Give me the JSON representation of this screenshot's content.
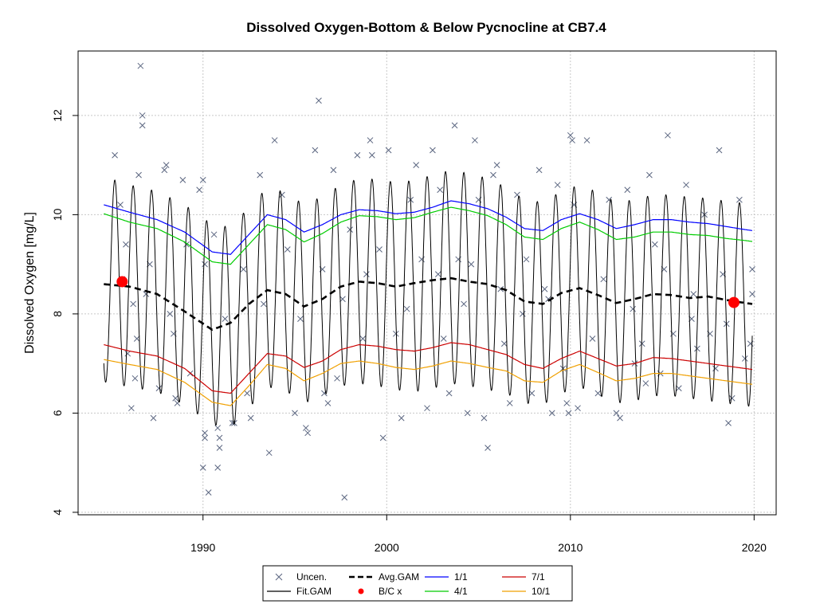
{
  "chart_data": {
    "type": "scatter",
    "title": "Dissolved Oxygen-Bottom & Below Pycnocline at CB7.4",
    "ylabel": "Dissolved Oxygen [mg/L]",
    "xlabel": "",
    "xlim": [
      1983.2,
      2021.2
    ],
    "ylim": [
      3.95,
      13.3
    ],
    "x_ticks": [
      1990,
      2000,
      2010,
      2020
    ],
    "x_tick_labels": [
      "1990",
      "2000",
      "2010",
      "2020"
    ],
    "y_ticks": [
      4,
      6,
      8,
      10,
      12
    ],
    "y_tick_labels": [
      "4",
      "6",
      "8",
      "10",
      "12"
    ],
    "grid": true,
    "legend_position": "bottom",
    "fit_x_range": [
      1984.6,
      2019.9
    ],
    "series": [
      {
        "name": "Uncen.",
        "kind": "points",
        "marker": "x",
        "color": "#5b6680",
        "points": [
          [
            1985.2,
            11.2
          ],
          [
            1985.5,
            10.2
          ],
          [
            1985.8,
            9.4
          ],
          [
            1985.9,
            7.2
          ],
          [
            1986.1,
            6.1
          ],
          [
            1986.3,
            6.7
          ],
          [
            1986.4,
            7.5
          ],
          [
            1986.5,
            10.8
          ],
          [
            1986.6,
            13.0
          ],
          [
            1986.7,
            12.0
          ],
          [
            1986.7,
            11.8
          ],
          [
            1986.9,
            8.4
          ],
          [
            1987.3,
            5.9
          ],
          [
            1987.6,
            6.5
          ],
          [
            1987.9,
            10.9
          ],
          [
            1988.0,
            11.0
          ],
          [
            1988.2,
            8.0
          ],
          [
            1988.5,
            6.3
          ],
          [
            1988.6,
            6.2
          ],
          [
            1988.9,
            10.7
          ],
          [
            1989.3,
            6.8
          ],
          [
            1989.8,
            10.5
          ],
          [
            1990.1,
            5.6
          ],
          [
            1990.1,
            5.5
          ],
          [
            1990.0,
            4.9
          ],
          [
            1990.3,
            4.4
          ],
          [
            1990.1,
            9.0
          ],
          [
            1990.0,
            10.7
          ],
          [
            1990.6,
            9.6
          ],
          [
            1990.8,
            4.9
          ],
          [
            1990.9,
            5.3
          ],
          [
            1990.9,
            5.5
          ],
          [
            1990.8,
            5.7
          ],
          [
            1991.2,
            7.9
          ],
          [
            1991.6,
            5.8
          ],
          [
            1991.7,
            5.8
          ],
          [
            1992.4,
            6.4
          ],
          [
            1992.6,
            5.9
          ],
          [
            1993.1,
            10.8
          ],
          [
            1993.3,
            8.2
          ],
          [
            1993.6,
            5.2
          ],
          [
            1993.9,
            11.5
          ],
          [
            1994.3,
            10.4
          ],
          [
            1995.0,
            6.0
          ],
          [
            1995.6,
            5.7
          ],
          [
            1995.7,
            5.6
          ],
          [
            1996.1,
            11.3
          ],
          [
            1996.3,
            12.3
          ],
          [
            1996.5,
            8.9
          ],
          [
            1996.6,
            6.4
          ],
          [
            1996.8,
            6.2
          ],
          [
            1997.1,
            10.9
          ],
          [
            1997.3,
            6.7
          ],
          [
            1997.7,
            4.3
          ],
          [
            1998.0,
            9.7
          ],
          [
            1998.4,
            11.2
          ],
          [
            1998.7,
            7.5
          ],
          [
            1999.1,
            11.5
          ],
          [
            1999.2,
            11.2
          ],
          [
            1999.6,
            9.3
          ],
          [
            1999.8,
            5.5
          ],
          [
            2000.1,
            11.3
          ],
          [
            2000.5,
            7.6
          ],
          [
            2000.8,
            5.9
          ],
          [
            2001.3,
            10.3
          ],
          [
            2001.6,
            11.0
          ],
          [
            2001.9,
            9.1
          ],
          [
            2002.2,
            6.1
          ],
          [
            2002.5,
            11.3
          ],
          [
            2002.9,
            10.5
          ],
          [
            2003.1,
            7.5
          ],
          [
            2003.4,
            6.4
          ],
          [
            2003.7,
            11.8
          ],
          [
            2003.9,
            9.1
          ],
          [
            2004.2,
            8.2
          ],
          [
            2004.4,
            6.0
          ],
          [
            2004.8,
            11.5
          ],
          [
            2005.0,
            10.3
          ],
          [
            2005.3,
            5.9
          ],
          [
            2005.5,
            5.3
          ],
          [
            2005.8,
            10.8
          ],
          [
            2006.0,
            11.0
          ],
          [
            2006.4,
            7.4
          ],
          [
            2006.7,
            6.2
          ],
          [
            2007.1,
            10.4
          ],
          [
            2007.4,
            8.0
          ],
          [
            2007.9,
            6.4
          ],
          [
            2008.3,
            10.9
          ],
          [
            2008.6,
            8.5
          ],
          [
            2009.0,
            6.0
          ],
          [
            2009.3,
            10.6
          ],
          [
            2009.6,
            6.9
          ],
          [
            2009.8,
            6.2
          ],
          [
            2009.9,
            6.0
          ],
          [
            2010.0,
            11.6
          ],
          [
            2010.1,
            11.5
          ],
          [
            2010.2,
            10.2
          ],
          [
            2010.4,
            6.1
          ],
          [
            2010.9,
            11.5
          ],
          [
            2011.2,
            7.5
          ],
          [
            2011.5,
            6.4
          ],
          [
            2012.1,
            10.3
          ],
          [
            2012.5,
            6.0
          ],
          [
            2012.7,
            5.9
          ],
          [
            2013.1,
            10.5
          ],
          [
            2013.5,
            7.0
          ],
          [
            2013.9,
            7.4
          ],
          [
            2014.1,
            6.6
          ],
          [
            2014.3,
            10.8
          ],
          [
            2014.6,
            9.4
          ],
          [
            2014.9,
            6.8
          ],
          [
            2015.3,
            11.6
          ],
          [
            2015.6,
            7.6
          ],
          [
            2015.9,
            6.5
          ],
          [
            2016.3,
            10.6
          ],
          [
            2016.6,
            7.9
          ],
          [
            2016.9,
            7.3
          ],
          [
            2017.3,
            10.0
          ],
          [
            2017.6,
            7.6
          ],
          [
            2017.9,
            6.9
          ],
          [
            2018.1,
            11.3
          ],
          [
            2018.5,
            7.8
          ],
          [
            2018.6,
            5.8
          ],
          [
            2018.8,
            6.3
          ],
          [
            2019.2,
            10.3
          ],
          [
            2019.5,
            7.1
          ],
          [
            2019.8,
            7.4
          ],
          [
            2019.9,
            8.9
          ],
          [
            2019.9,
            8.4
          ],
          [
            1985.6,
            8.7
          ],
          [
            1986.2,
            8.2
          ],
          [
            1987.1,
            9.0
          ],
          [
            1988.4,
            7.6
          ],
          [
            1989.1,
            9.4
          ],
          [
            1992.2,
            8.9
          ],
          [
            1994.6,
            9.3
          ],
          [
            1995.3,
            7.9
          ],
          [
            1997.6,
            8.3
          ],
          [
            1998.9,
            8.8
          ],
          [
            2001.1,
            8.1
          ],
          [
            2002.8,
            8.8
          ],
          [
            2004.6,
            9.0
          ],
          [
            2006.2,
            8.5
          ],
          [
            2007.6,
            9.1
          ],
          [
            2008.8,
            8.3
          ],
          [
            2011.8,
            8.7
          ],
          [
            2013.4,
            8.1
          ],
          [
            2015.1,
            8.9
          ],
          [
            2016.7,
            8.4
          ],
          [
            2018.3,
            8.8
          ]
        ]
      },
      {
        "name": "Fit.GAM",
        "kind": "fit",
        "color": "#000000"
      },
      {
        "name": "Avg.GAM",
        "kind": "smooth",
        "color": "#000000",
        "dash": true,
        "x": [
          1984.6,
          1986.0,
          1987.5,
          1989.0,
          1990.5,
          1991.5,
          1992.5,
          1993.5,
          1994.5,
          1995.5,
          1996.5,
          1997.5,
          1998.5,
          1999.5,
          2000.5,
          2001.5,
          2002.5,
          2003.5,
          2004.5,
          2005.5,
          2006.5,
          2007.5,
          2008.5,
          2009.5,
          2010.5,
          2011.5,
          2012.5,
          2013.5,
          2014.5,
          2015.5,
          2016.5,
          2017.5,
          2018.5,
          2019.5,
          2019.9
        ],
        "y": [
          8.6,
          8.55,
          8.4,
          8.05,
          7.68,
          7.82,
          8.2,
          8.48,
          8.4,
          8.15,
          8.3,
          8.55,
          8.65,
          8.62,
          8.55,
          8.62,
          8.68,
          8.72,
          8.65,
          8.6,
          8.48,
          8.25,
          8.2,
          8.42,
          8.52,
          8.38,
          8.22,
          8.3,
          8.4,
          8.38,
          8.32,
          8.35,
          8.28,
          8.22,
          8.2
        ]
      },
      {
        "name": "B/C x",
        "kind": "markers",
        "color": "#ff0000",
        "points": [
          [
            1985.6,
            8.65
          ],
          [
            2018.9,
            8.23
          ]
        ]
      },
      {
        "name": "1/1",
        "kind": "smooth",
        "color": "#0000ff",
        "x": [
          1984.6,
          1986.0,
          1987.5,
          1989.0,
          1990.5,
          1991.5,
          1992.5,
          1993.5,
          1994.5,
          1995.5,
          1996.5,
          1997.5,
          1998.5,
          1999.5,
          2000.5,
          2001.5,
          2002.5,
          2003.5,
          2004.5,
          2005.5,
          2006.5,
          2007.5,
          2008.5,
          2009.5,
          2010.5,
          2011.5,
          2012.5,
          2013.5,
          2014.5,
          2015.5,
          2016.5,
          2017.5,
          2018.5,
          2019.5,
          2019.9
        ],
        "y": [
          10.2,
          10.05,
          9.9,
          9.65,
          9.25,
          9.2,
          9.6,
          10.0,
          9.9,
          9.65,
          9.8,
          10.0,
          10.1,
          10.08,
          10.02,
          10.05,
          10.15,
          10.28,
          10.22,
          10.12,
          9.95,
          9.72,
          9.68,
          9.9,
          10.02,
          9.9,
          9.72,
          9.8,
          9.9,
          9.9,
          9.85,
          9.82,
          9.76,
          9.7,
          9.68
        ]
      },
      {
        "name": "4/1",
        "kind": "smooth",
        "color": "#00cc00",
        "x": [
          1984.6,
          1986.0,
          1987.5,
          1989.0,
          1990.5,
          1991.5,
          1992.5,
          1993.5,
          1994.5,
          1995.5,
          1996.5,
          1997.5,
          1998.5,
          1999.5,
          2000.5,
          2001.5,
          2002.5,
          2003.5,
          2004.5,
          2005.5,
          2006.5,
          2007.5,
          2008.5,
          2009.5,
          2010.5,
          2011.5,
          2012.5,
          2013.5,
          2014.5,
          2015.5,
          2016.5,
          2017.5,
          2018.5,
          2019.5,
          2019.9
        ],
        "y": [
          10.02,
          9.85,
          9.72,
          9.45,
          9.05,
          9.0,
          9.4,
          9.8,
          9.7,
          9.45,
          9.62,
          9.85,
          9.98,
          9.96,
          9.9,
          9.94,
          10.05,
          10.15,
          10.08,
          9.98,
          9.8,
          9.55,
          9.5,
          9.72,
          9.85,
          9.7,
          9.5,
          9.55,
          9.65,
          9.65,
          9.6,
          9.58,
          9.52,
          9.48,
          9.46
        ]
      },
      {
        "name": "7/1",
        "kind": "smooth",
        "color": "#cc0000",
        "x": [
          1984.6,
          1986.0,
          1987.5,
          1989.0,
          1990.5,
          1991.5,
          1992.5,
          1993.5,
          1994.5,
          1995.5,
          1996.5,
          1997.5,
          1998.5,
          1999.5,
          2000.5,
          2001.5,
          2002.5,
          2003.5,
          2004.5,
          2005.5,
          2006.5,
          2007.5,
          2008.5,
          2009.5,
          2010.5,
          2011.5,
          2012.5,
          2013.5,
          2014.5,
          2015.5,
          2016.5,
          2017.5,
          2018.5,
          2019.5,
          2019.9
        ],
        "y": [
          7.38,
          7.25,
          7.15,
          6.9,
          6.45,
          6.4,
          6.8,
          7.2,
          7.15,
          6.92,
          7.05,
          7.28,
          7.38,
          7.35,
          7.28,
          7.25,
          7.32,
          7.42,
          7.38,
          7.28,
          7.18,
          6.98,
          6.9,
          7.1,
          7.25,
          7.1,
          6.95,
          7.0,
          7.12,
          7.1,
          7.05,
          7.0,
          6.95,
          6.9,
          6.88
        ]
      },
      {
        "name": "10/1",
        "kind": "smooth",
        "color": "#f0a000",
        "x": [
          1984.6,
          1986.0,
          1987.5,
          1989.0,
          1990.5,
          1991.5,
          1992.5,
          1993.5,
          1994.5,
          1995.5,
          1996.5,
          1997.5,
          1998.5,
          1999.5,
          2000.5,
          2001.5,
          2002.5,
          2003.5,
          2004.5,
          2005.5,
          2006.5,
          2007.5,
          2008.5,
          2009.5,
          2010.5,
          2011.5,
          2012.5,
          2013.5,
          2014.5,
          2015.5,
          2016.5,
          2017.5,
          2018.5,
          2019.5,
          2019.9
        ],
        "y": [
          7.08,
          6.98,
          6.88,
          6.62,
          6.22,
          6.15,
          6.55,
          6.98,
          6.9,
          6.65,
          6.8,
          7.0,
          7.05,
          7.0,
          6.92,
          6.88,
          6.95,
          7.05,
          7.0,
          6.92,
          6.85,
          6.65,
          6.62,
          6.85,
          6.98,
          6.82,
          6.65,
          6.7,
          6.8,
          6.8,
          6.75,
          6.7,
          6.65,
          6.6,
          6.58
        ]
      }
    ]
  }
}
